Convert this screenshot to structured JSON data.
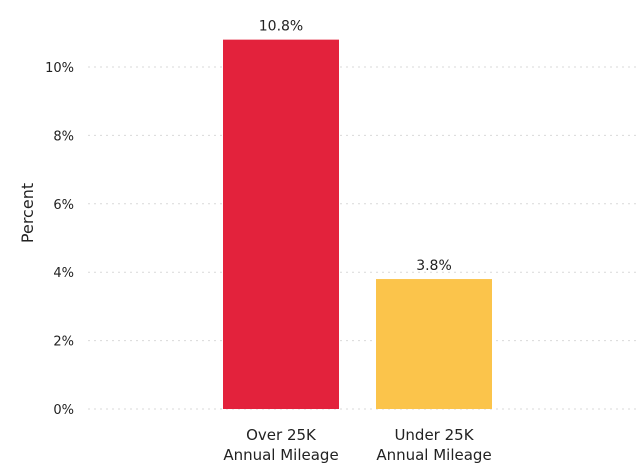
{
  "chart_data": {
    "type": "bar",
    "categories": [
      [
        "Over 25K",
        "Annual Mileage"
      ],
      [
        "Under 25K",
        "Annual Mileage"
      ]
    ],
    "values": [
      10.8,
      3.8
    ],
    "data_labels": [
      "10.8%",
      "3.8%"
    ],
    "bar_colors": [
      "#e3223c",
      "#fbc44b"
    ],
    "ylabel": "Percent",
    "ylim": [
      0,
      11
    ],
    "yticks": [
      0,
      2,
      4,
      6,
      8,
      10
    ],
    "ytick_labels": [
      "0%",
      "2%",
      "4%",
      "6%",
      "8%",
      "10%"
    ],
    "grid": true,
    "grid_style": "dotted horizontal",
    "legend": "none"
  }
}
